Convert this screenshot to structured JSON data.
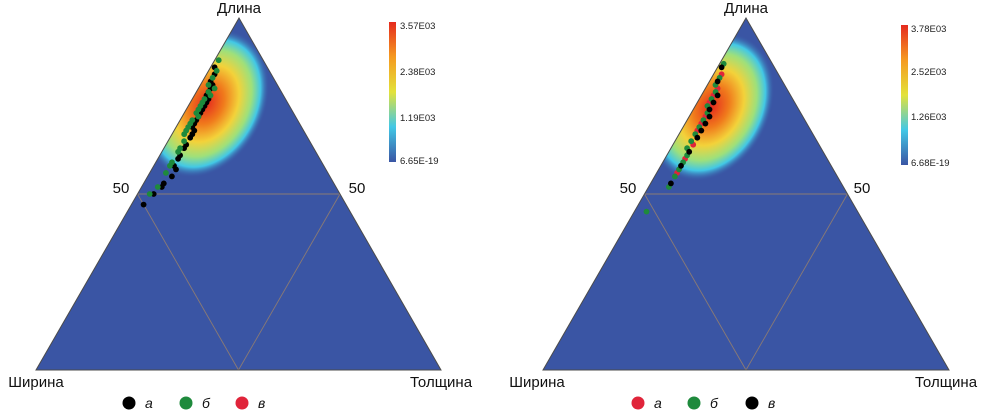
{
  "colors": {
    "background_density": "#3a55a4",
    "grid_line": "#8a7a74",
    "triangle_edge": "#4b4b4b",
    "marker_a_left": "#000000",
    "marker_b": "#1e8a3c",
    "marker_v_left": "#e0243a",
    "marker_a_right": "#e0243a",
    "marker_v_right": "#000000",
    "colormap": [
      "#3a55a4",
      "#42c8e6",
      "#e3e23a",
      "#f59a20",
      "#e52a1e"
    ]
  },
  "chart_data": [
    {
      "type": "ternary-density-scatter",
      "vertices": {
        "top": "Длина",
        "left": "Ширина",
        "right": "Толщина"
      },
      "midpoint_labels": [
        "50",
        "50"
      ],
      "colorbar": {
        "ticks": [
          "3.57E03",
          "2.38E03",
          "1.19E03",
          "6.65E-19"
        ],
        "range": [
          6.65e-19,
          3570
        ]
      },
      "density_peak": {
        "length": 0.78,
        "width": 0.2,
        "thickness": 0.02
      },
      "legend": [
        {
          "symbol": "а",
          "color": "#000000"
        },
        {
          "symbol": "б",
          "color": "#1e8a3c"
        },
        {
          "symbol": "в",
          "color": "#e0243a"
        }
      ],
      "series": [
        {
          "marker": "а",
          "color": "#000000",
          "points": [
            [
              0.86,
              0.13
            ],
            [
              0.84,
              0.14
            ],
            [
              0.82,
              0.16
            ],
            [
              0.8,
              0.17
            ],
            [
              0.78,
              0.19
            ],
            [
              0.77,
              0.19
            ],
            [
              0.75,
              0.21
            ],
            [
              0.73,
              0.23
            ],
            [
              0.72,
              0.24
            ],
            [
              0.7,
              0.26
            ],
            [
              0.68,
              0.27
            ],
            [
              0.66,
              0.29
            ],
            [
              0.63,
              0.32
            ],
            [
              0.61,
              0.34
            ],
            [
              0.58,
              0.37
            ],
            [
              0.55,
              0.39
            ],
            [
              0.53,
              0.42
            ],
            [
              0.5,
              0.46
            ],
            [
              0.47,
              0.5
            ],
            [
              0.81,
              0.16
            ],
            [
              0.79,
              0.18
            ],
            [
              0.76,
              0.2
            ],
            [
              0.74,
              0.22
            ],
            [
              0.71,
              0.25
            ],
            [
              0.69,
              0.27
            ],
            [
              0.67,
              0.28
            ],
            [
              0.64,
              0.31
            ],
            [
              0.6,
              0.35
            ],
            [
              0.57,
              0.37
            ],
            [
              0.52,
              0.43
            ]
          ]
        },
        {
          "marker": "б",
          "color": "#1e8a3c",
          "points": [
            [
              0.88,
              0.11
            ],
            [
              0.85,
              0.13
            ],
            [
              0.83,
              0.15
            ],
            [
              0.81,
              0.17
            ],
            [
              0.79,
              0.18
            ],
            [
              0.77,
              0.2
            ],
            [
              0.76,
              0.21
            ],
            [
              0.74,
              0.23
            ],
            [
              0.72,
              0.24
            ],
            [
              0.71,
              0.26
            ],
            [
              0.69,
              0.28
            ],
            [
              0.67,
              0.3
            ],
            [
              0.65,
              0.31
            ],
            [
              0.62,
              0.34
            ],
            [
              0.59,
              0.37
            ],
            [
              0.56,
              0.4
            ],
            [
              0.52,
              0.44
            ],
            [
              0.5,
              0.47
            ],
            [
              0.8,
              0.16
            ],
            [
              0.78,
              0.18
            ],
            [
              0.75,
              0.22
            ],
            [
              0.73,
              0.24
            ],
            [
              0.7,
              0.27
            ],
            [
              0.68,
              0.29
            ],
            [
              0.63,
              0.33
            ],
            [
              0.58,
              0.38
            ]
          ]
        },
        {
          "marker": "в",
          "color": "#e0243a",
          "points": []
        }
      ]
    },
    {
      "type": "ternary-density-scatter",
      "vertices": {
        "top": "Длина",
        "left": "Ширина",
        "right": "Толщина"
      },
      "midpoint_labels": [
        "50",
        "50"
      ],
      "colorbar": {
        "ticks": [
          "3.78E03",
          "2.52E03",
          "1.26E03",
          "6.68E-19"
        ],
        "range": [
          6.68e-19,
          3780
        ]
      },
      "density_peak": {
        "length": 0.77,
        "width": 0.21,
        "thickness": 0.02
      },
      "legend": [
        {
          "symbol": "а",
          "color": "#e0243a"
        },
        {
          "symbol": "б",
          "color": "#1e8a3c"
        },
        {
          "symbol": "в",
          "color": "#000000"
        }
      ],
      "series": [
        {
          "marker": "а",
          "color": "#e0243a",
          "points": [
            [
              0.84,
              0.14
            ],
            [
              0.8,
              0.17
            ],
            [
              0.76,
              0.21
            ],
            [
              0.72,
              0.24
            ],
            [
              0.68,
              0.28
            ],
            [
              0.64,
              0.31
            ],
            [
              0.6,
              0.35
            ],
            [
              0.56,
              0.39
            ],
            [
              0.78,
              0.19
            ],
            [
              0.7,
              0.26
            ]
          ]
        },
        {
          "marker": "б",
          "color": "#1e8a3c",
          "points": [
            [
              0.87,
              0.12
            ],
            [
              0.83,
              0.15
            ],
            [
              0.79,
              0.18
            ],
            [
              0.75,
              0.22
            ],
            [
              0.71,
              0.25
            ],
            [
              0.67,
              0.29
            ],
            [
              0.63,
              0.33
            ],
            [
              0.59,
              0.36
            ],
            [
              0.55,
              0.4
            ],
            [
              0.52,
              0.43
            ],
            [
              0.45,
              0.52
            ],
            [
              0.81,
              0.17
            ],
            [
              0.77,
              0.2
            ],
            [
              0.73,
              0.23
            ],
            [
              0.69,
              0.27
            ],
            [
              0.65,
              0.31
            ],
            [
              0.61,
              0.34
            ],
            [
              0.57,
              0.38
            ]
          ]
        },
        {
          "marker": "в",
          "color": "#000000",
          "points": [
            [
              0.86,
              0.13
            ],
            [
              0.82,
              0.16
            ],
            [
              0.78,
              0.18
            ],
            [
              0.74,
              0.22
            ],
            [
              0.7,
              0.25
            ],
            [
              0.66,
              0.29
            ],
            [
              0.62,
              0.33
            ],
            [
              0.58,
              0.37
            ],
            [
              0.53,
              0.42
            ],
            [
              0.76,
              0.2
            ],
            [
              0.72,
              0.23
            ],
            [
              0.68,
              0.27
            ]
          ]
        }
      ]
    }
  ]
}
